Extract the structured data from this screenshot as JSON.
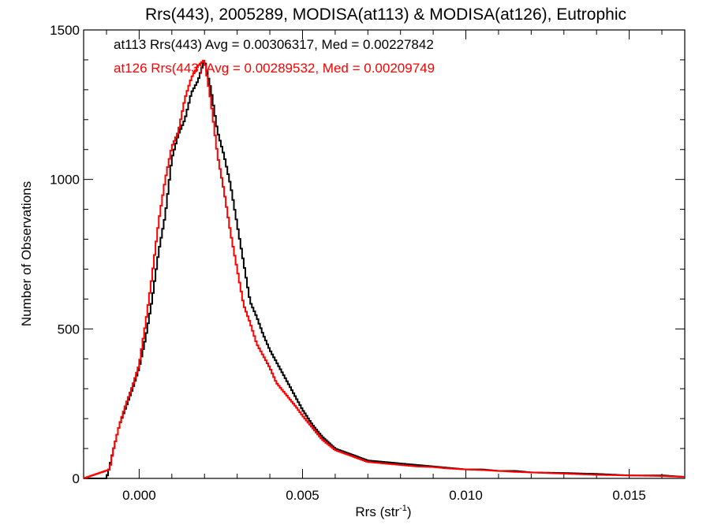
{
  "chart_data": {
    "type": "line",
    "title": "Rrs(443), 2005289, MODISA(at113) & MODISA(at126), Eutrophic",
    "xlabel_main": "Rrs (str",
    "xlabel_sup": "-1",
    "xlabel_tail": ")",
    "ylabel": "Number of Observations",
    "xlim": [
      -0.0017,
      0.0167
    ],
    "ylim": [
      0,
      1500
    ],
    "x_ticks": [
      0.0,
      0.005,
      0.01,
      0.015
    ],
    "x_tick_labels": [
      "0.000",
      "0.005",
      "0.010",
      "0.015"
    ],
    "y_ticks": [
      0,
      500,
      1000,
      1500
    ],
    "y_tick_labels": [
      "0",
      "500",
      "1000",
      "1500"
    ],
    "annotations": [
      "at113 Rrs(443) Avg = 0.00306317, Med = 0.00227842",
      "at126 Rrs(443) Avg = 0.00289532, Med = 0.00209749"
    ],
    "series": [
      {
        "color": "#000000",
        "x": [
          -0.0017,
          -0.001,
          -0.0009,
          -0.0008,
          -0.0006,
          -0.0004,
          -0.0002,
          0.0,
          0.0002,
          0.0004,
          0.0006,
          0.0008,
          0.001,
          0.0012,
          0.0014,
          0.0016,
          0.0018,
          0.002,
          0.0022,
          0.0024,
          0.0026,
          0.0028,
          0.003,
          0.0032,
          0.0034,
          0.0036,
          0.0038,
          0.004,
          0.0042,
          0.0045,
          0.0048,
          0.005,
          0.0053,
          0.0056,
          0.006,
          0.0065,
          0.007,
          0.0075,
          0.008,
          0.0085,
          0.009,
          0.0095,
          0.01,
          0.0105,
          0.011,
          0.0115,
          0.012,
          0.013,
          0.014,
          0.015,
          0.016,
          0.0167
        ],
        "y": [
          0,
          0,
          40,
          90,
          180,
          240,
          300,
          370,
          470,
          600,
          760,
          880,
          1070,
          1150,
          1200,
          1290,
          1330,
          1400,
          1300,
          1160,
          1080,
          980,
          850,
          720,
          590,
          540,
          480,
          430,
          390,
          330,
          270,
          230,
          180,
          140,
          100,
          80,
          60,
          55,
          50,
          45,
          40,
          35,
          30,
          30,
          25,
          25,
          20,
          18,
          15,
          10,
          10,
          5
        ]
      },
      {
        "color": "#ff0000",
        "x": [
          -0.0017,
          -0.0009,
          -0.0008,
          -0.0006,
          -0.0004,
          -0.0002,
          0.0,
          0.0002,
          0.0004,
          0.0006,
          0.0008,
          0.001,
          0.0012,
          0.0014,
          0.0016,
          0.0018,
          0.002,
          0.0022,
          0.0024,
          0.0026,
          0.0028,
          0.003,
          0.0032,
          0.0034,
          0.0036,
          0.0038,
          0.004,
          0.0042,
          0.0045,
          0.0048,
          0.005,
          0.0053,
          0.0056,
          0.006,
          0.0065,
          0.007,
          0.0075,
          0.008,
          0.0085,
          0.009,
          0.0095,
          0.01,
          0.0105,
          0.011,
          0.0115,
          0.012,
          0.013,
          0.014,
          0.015,
          0.016,
          0.0167
        ],
        "y": [
          0,
          30,
          90,
          180,
          250,
          310,
          380,
          520,
          680,
          860,
          1000,
          1110,
          1160,
          1270,
          1340,
          1380,
          1400,
          1260,
          1080,
          960,
          820,
          700,
          580,
          520,
          450,
          410,
          370,
          320,
          280,
          240,
          210,
          170,
          130,
          95,
          75,
          55,
          50,
          45,
          40,
          38,
          33,
          30,
          28,
          25,
          22,
          20,
          16,
          12,
          10,
          8,
          5
        ]
      }
    ]
  }
}
